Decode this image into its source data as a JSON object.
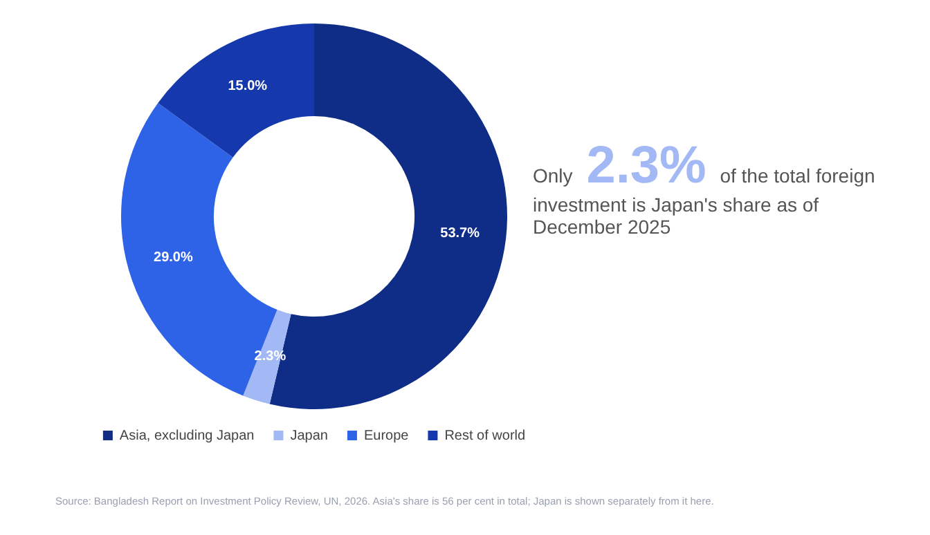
{
  "chart_data": {
    "type": "donut",
    "categories": [
      "Asia, excluding Japan",
      "Japan",
      "Europe",
      "Rest of world"
    ],
    "values": [
      53.7,
      2.3,
      29.0,
      15.0
    ],
    "colors": [
      "#0f2d87",
      "#a3b9f5",
      "#2e63e8",
      "#1539ad"
    ],
    "value_labels": [
      "53.7%",
      "2.3%",
      "29.0%",
      "15.0%"
    ],
    "legend": "bottom",
    "annotations": [
      "Only 2.3% of the total foreign investment is Japan's share as of December 2025",
      "Source: Bangladesh Report on Investment Policy Review, UN, 2026. Asia's share is 56 per cent in total; Japan is shown separately from it here."
    ]
  }
}
